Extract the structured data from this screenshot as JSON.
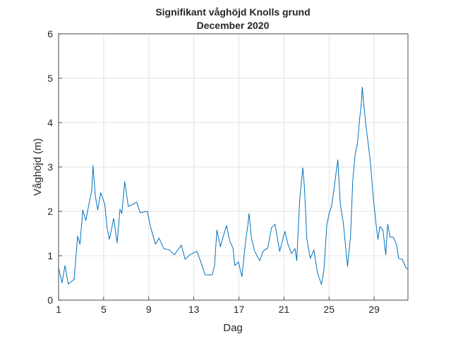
{
  "chart_data": {
    "type": "line",
    "title": "Signifikant våghöjd Knolls grund",
    "subtitle": "December 2020",
    "xlabel": "Dag",
    "ylabel": "Våghöjd (m)",
    "xlim": [
      1,
      32
    ],
    "ylim": [
      0,
      6
    ],
    "xticks": [
      1,
      5,
      9,
      13,
      17,
      21,
      25,
      29
    ],
    "yticks": [
      0,
      1,
      2,
      3,
      4,
      5,
      6
    ],
    "grid": true,
    "line_color": "#0072BD",
    "series": [
      {
        "name": "Signifikant våghöjd",
        "x": [
          1.0,
          1.3,
          1.57,
          1.86,
          2.38,
          2.69,
          2.9,
          3.15,
          3.42,
          3.63,
          3.95,
          4.05,
          4.26,
          4.47,
          4.74,
          5.1,
          5.3,
          5.51,
          5.89,
          6.2,
          6.45,
          6.62,
          6.87,
          7.19,
          7.6,
          7.92,
          8.24,
          8.87,
          9.18,
          9.6,
          9.91,
          10.33,
          10.85,
          11.27,
          11.9,
          12.22,
          12.64,
          13.27,
          13.58,
          14.0,
          14.63,
          14.84,
          15.05,
          15.36,
          15.57,
          15.9,
          16.2,
          16.47,
          16.64,
          16.96,
          17.27,
          17.59,
          17.79,
          17.9,
          18.1,
          18.4,
          18.84,
          19.15,
          19.57,
          19.89,
          20.2,
          20.62,
          21.08,
          21.35,
          21.67,
          21.98,
          22.13,
          22.4,
          22.67,
          22.82,
          23.03,
          23.34,
          23.65,
          23.97,
          24.32,
          24.55,
          24.8,
          25.0,
          25.22,
          25.43,
          25.64,
          25.78,
          26.0,
          26.27,
          26.64,
          26.9,
          27.1,
          27.31,
          27.52,
          27.73,
          27.8,
          27.9,
          27.94,
          28.05,
          28.26,
          28.47,
          28.67,
          28.92,
          29.16,
          29.34,
          29.51,
          29.78,
          30.03,
          30.2,
          30.41,
          30.7,
          30.98,
          31.18,
          31.5,
          31.81,
          32.0
        ],
        "y": [
          0.73,
          0.39,
          0.78,
          0.36,
          0.47,
          1.44,
          1.26,
          2.03,
          1.79,
          2.08,
          2.48,
          3.03,
          2.35,
          2.03,
          2.42,
          2.16,
          1.63,
          1.37,
          1.84,
          1.29,
          2.05,
          1.95,
          2.67,
          2.11,
          2.16,
          2.21,
          1.97,
          2.0,
          1.63,
          1.26,
          1.4,
          1.16,
          1.13,
          1.02,
          1.24,
          0.92,
          1.02,
          1.1,
          0.89,
          0.57,
          0.57,
          0.78,
          1.58,
          1.2,
          1.4,
          1.68,
          1.32,
          1.18,
          0.78,
          0.86,
          0.53,
          1.32,
          1.68,
          1.95,
          1.42,
          1.1,
          0.89,
          1.1,
          1.18,
          1.63,
          1.71,
          1.1,
          1.55,
          1.26,
          1.05,
          1.16,
          0.89,
          2.27,
          2.98,
          2.53,
          1.37,
          0.94,
          1.13,
          0.62,
          0.35,
          0.68,
          1.68,
          1.95,
          2.11,
          2.48,
          2.9,
          3.16,
          2.16,
          1.73,
          0.76,
          1.42,
          2.69,
          3.27,
          3.54,
          4.12,
          4.27,
          4.54,
          4.8,
          4.51,
          3.96,
          3.54,
          3.11,
          2.32,
          1.73,
          1.37,
          1.66,
          1.58,
          1.02,
          1.71,
          1.42,
          1.42,
          1.26,
          0.94,
          0.92,
          0.73,
          0.7
        ]
      }
    ]
  }
}
